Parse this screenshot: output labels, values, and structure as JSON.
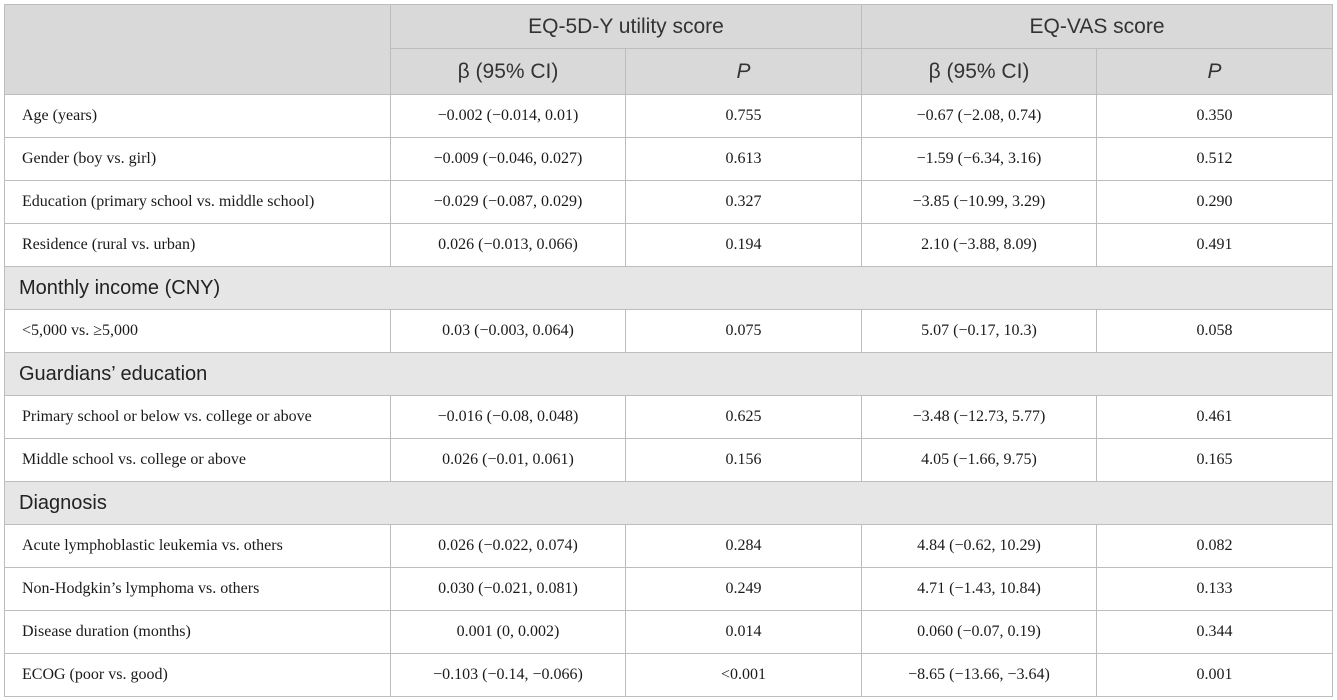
{
  "header": {
    "group_utility": "EQ-5D-Y utility score",
    "group_vas": "EQ-VAS score",
    "beta_ci": "β (95% CI)",
    "p": "P"
  },
  "rows": [
    {
      "type": "data",
      "label": "Age (years)",
      "u_beta": "−0.002 (−0.014, 0.01)",
      "u_p": "0.755",
      "v_beta": "−0.67 (−2.08, 0.74)",
      "v_p": "0.350"
    },
    {
      "type": "data",
      "label": "Gender (boy vs. girl)",
      "u_beta": "−0.009 (−0.046, 0.027)",
      "u_p": "0.613",
      "v_beta": "−1.59 (−6.34, 3.16)",
      "v_p": "0.512"
    },
    {
      "type": "data",
      "label": "Education (primary school vs. middle school)",
      "u_beta": "−0.029 (−0.087, 0.029)",
      "u_p": "0.327",
      "v_beta": "−3.85 (−10.99, 3.29)",
      "v_p": "0.290"
    },
    {
      "type": "data",
      "label": "Residence (rural vs. urban)",
      "u_beta": "0.026 (−0.013, 0.066)",
      "u_p": "0.194",
      "v_beta": "2.10 (−3.88, 8.09)",
      "v_p": "0.491"
    },
    {
      "type": "section",
      "label": "Monthly income (CNY)"
    },
    {
      "type": "data",
      "label": "<5,000 vs. ≥5,000",
      "u_beta": "0.03 (−0.003, 0.064)",
      "u_p": "0.075",
      "v_beta": "5.07 (−0.17, 10.3)",
      "v_p": "0.058"
    },
    {
      "type": "section",
      "label": "Guardians’ education"
    },
    {
      "type": "data",
      "label": "Primary school or below vs. college or above",
      "u_beta": "−0.016 (−0.08, 0.048)",
      "u_p": "0.625",
      "v_beta": "−3.48 (−12.73, 5.77)",
      "v_p": "0.461"
    },
    {
      "type": "data",
      "label": "Middle school vs. college or above",
      "u_beta": "0.026 (−0.01, 0.061)",
      "u_p": "0.156",
      "v_beta": "4.05 (−1.66, 9.75)",
      "v_p": "0.165"
    },
    {
      "type": "section",
      "label": "Diagnosis"
    },
    {
      "type": "data",
      "label": "Acute lymphoblastic leukemia vs. others",
      "u_beta": "0.026 (−0.022, 0.074)",
      "u_p": "0.284",
      "v_beta": "4.84 (−0.62, 10.29)",
      "v_p": "0.082"
    },
    {
      "type": "data",
      "label": "Non-Hodgkin’s lymphoma vs. others",
      "u_beta": "0.030 (−0.021, 0.081)",
      "u_p": "0.249",
      "v_beta": "4.71 (−1.43, 10.84)",
      "v_p": "0.133"
    },
    {
      "type": "data",
      "label": "Disease duration (months)",
      "u_beta": "0.001 (0, 0.002)",
      "u_p": "0.014",
      "v_beta": "0.060 (−0.07, 0.19)",
      "v_p": "0.344"
    },
    {
      "type": "data",
      "label": "ECOG (poor vs. good)",
      "u_beta": "−0.103 (−0.14, −0.066)",
      "u_p": "<0.001",
      "v_beta": "−8.65 (−13.66, −3.64)",
      "v_p": "0.001"
    }
  ]
}
